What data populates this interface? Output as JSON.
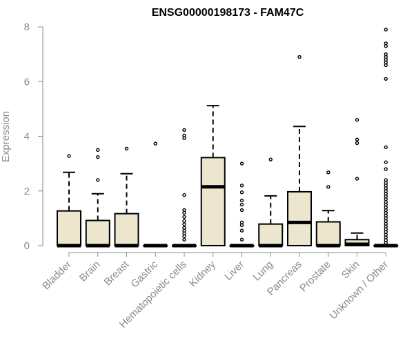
{
  "chart_data": {
    "type": "box",
    "title": "ENSG00000198173 - FAM47C",
    "xlabel": "",
    "ylabel": "Expression",
    "ylim": [
      0,
      8
    ],
    "yticks": [
      "0",
      "2",
      "4",
      "6",
      "8"
    ],
    "grid": false,
    "categories": [
      "Bladder",
      "Brain",
      "Breast",
      "Gastric",
      "Hematopoietic cells",
      "Kidney",
      "Liver",
      "Lung",
      "Pancreas",
      "Prostate",
      "Skin",
      "Unknown / Other"
    ],
    "boxes": [
      {
        "q1": 0,
        "median": 0,
        "q3": 1.27,
        "whisker_low": 0,
        "whisker_high": 2.68,
        "outliers": [
          3.28
        ]
      },
      {
        "q1": 0,
        "median": 0,
        "q3": 0.92,
        "whisker_low": 0,
        "whisker_high": 1.9,
        "outliers": [
          2.4,
          3.24,
          3.5
        ]
      },
      {
        "q1": 0,
        "median": 0,
        "q3": 1.17,
        "whisker_low": 0,
        "whisker_high": 2.63,
        "outliers": [
          3.55
        ]
      },
      {
        "q1": 0,
        "median": 0,
        "q3": 0,
        "whisker_low": 0,
        "whisker_high": 0,
        "outliers": [
          3.73
        ]
      },
      {
        "q1": 0,
        "median": 0,
        "q3": 0,
        "whisker_low": 0,
        "whisker_high": 0,
        "outliers": [
          0.22,
          0.35,
          0.45,
          0.55,
          0.65,
          0.78,
          0.9,
          1.05,
          1.2,
          1.3,
          1.85,
          3.93,
          4.03,
          4.23
        ]
      },
      {
        "q1": 0,
        "median": 2.15,
        "q3": 3.22,
        "whisker_low": 0,
        "whisker_high": 5.12,
        "outliers": []
      },
      {
        "q1": 0,
        "median": 0,
        "q3": 0,
        "whisker_low": 0,
        "whisker_high": 0,
        "outliers": [
          0.22,
          0.55,
          0.75,
          0.85,
          1.3,
          1.5,
          1.65,
          1.95,
          2.2,
          3.0
        ]
      },
      {
        "q1": 0,
        "median": 0,
        "q3": 0.79,
        "whisker_low": 0,
        "whisker_high": 1.82,
        "outliers": [
          3.15
        ]
      },
      {
        "q1": 0,
        "median": 0.85,
        "q3": 1.97,
        "whisker_low": 0,
        "whisker_high": 4.36,
        "outliers": [
          6.9
        ]
      },
      {
        "q1": 0,
        "median": 0,
        "q3": 0.87,
        "whisker_low": 0,
        "whisker_high": 1.28,
        "outliers": [
          2.15,
          2.68
        ]
      },
      {
        "q1": 0,
        "median": 0.05,
        "q3": 0.22,
        "whisker_low": 0,
        "whisker_high": 0.46,
        "outliers": [
          2.45,
          3.75,
          3.88,
          4.6
        ]
      },
      {
        "q1": 0,
        "median": 0,
        "q3": 0,
        "whisker_low": 0,
        "whisker_high": 0,
        "outliers": [
          0.1,
          0.2,
          0.3,
          0.4,
          0.5,
          0.6,
          0.7,
          0.8,
          0.9,
          1.0,
          1.1,
          1.2,
          1.3,
          1.4,
          1.5,
          1.6,
          1.7,
          1.8,
          1.9,
          2.0,
          2.1,
          2.2,
          2.3,
          2.4,
          2.8,
          3.05,
          3.6,
          6.1,
          6.6,
          6.7,
          6.8,
          6.9,
          7.0,
          7.3,
          7.4,
          7.9
        ]
      }
    ],
    "colors": {
      "box_fill": "#ede6cf",
      "box_stroke": "#000000",
      "median": "#000000",
      "axis": "#8a8a8a"
    }
  }
}
